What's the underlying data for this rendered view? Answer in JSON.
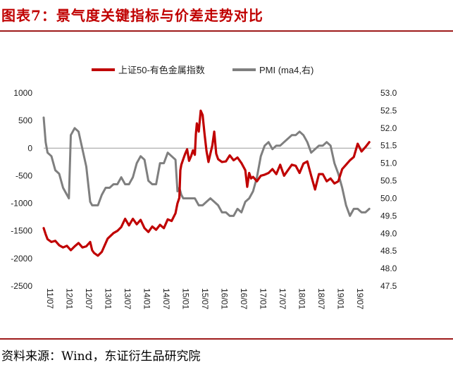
{
  "figure": {
    "title": "图表7：景气度关键指标与价差走势对比",
    "source": "资料来源：Wind，东证衍生品研究院"
  },
  "colors": {
    "series1": "#c00000",
    "series2": "#7f7f7f",
    "rule": "#9e1b1b"
  },
  "chart_data": {
    "type": "line",
    "legend_position": "top-center",
    "grid": false,
    "title": "",
    "xlabel": "",
    "ylabel_left": "",
    "ylabel_right": "",
    "x_ticks": [
      "11/07",
      "12/01",
      "12/07",
      "13/01",
      "13/07",
      "14/01",
      "14/07",
      "15/01",
      "15/07",
      "16/01",
      "16/07",
      "17/01",
      "17/07",
      "18/01",
      "18/07",
      "19/01",
      "19/07"
    ],
    "x_range": [
      0,
      16.9
    ],
    "y_left": {
      "range": [
        -2500,
        1000
      ],
      "ticks": [
        1000,
        500,
        0,
        -500,
        -1000,
        -1500,
        -2000,
        -2500
      ]
    },
    "y_right": {
      "range": [
        47.5,
        53.0
      ],
      "ticks": [
        "53.0",
        "52.5",
        "52.0",
        "51.5",
        "51.0",
        "50.5",
        "50.0",
        "49.5",
        "49.0",
        "48.5",
        "48.0",
        "47.5"
      ]
    },
    "series": [
      {
        "name": "上证50-有色金属指数",
        "axis": "left",
        "x": [
          0,
          0.1,
          0.2,
          0.4,
          0.6,
          0.8,
          1.0,
          1.2,
          1.4,
          1.6,
          1.8,
          2.0,
          2.2,
          2.4,
          2.5,
          2.6,
          2.8,
          3.0,
          3.3,
          3.6,
          3.8,
          4.0,
          4.2,
          4.4,
          4.6,
          4.8,
          5.0,
          5.2,
          5.4,
          5.6,
          5.8,
          6.0,
          6.2,
          6.4,
          6.6,
          6.8,
          6.9,
          7.0,
          7.05,
          7.1,
          7.2,
          7.3,
          7.4,
          7.5,
          7.6,
          7.7,
          7.8,
          7.85,
          7.9,
          8.0,
          8.1,
          8.2,
          8.3,
          8.4,
          8.5,
          8.6,
          8.7,
          8.8,
          8.9,
          9.0,
          9.2,
          9.4,
          9.6,
          9.8,
          10.0,
          10.2,
          10.4,
          10.5,
          10.6,
          10.7,
          10.8,
          11.0,
          11.2,
          11.4,
          11.6,
          11.8,
          12.0,
          12.2,
          12.4,
          12.6,
          12.8,
          13.0,
          13.2,
          13.4,
          13.6,
          13.8,
          14.0,
          14.2,
          14.4,
          14.6,
          14.8,
          15.0,
          15.2,
          15.4,
          15.6,
          15.8,
          16.0,
          16.2,
          16.4,
          16.6,
          16.8
        ],
        "values": [
          -1450,
          -1560,
          -1650,
          -1700,
          -1680,
          -1760,
          -1800,
          -1770,
          -1850,
          -1780,
          -1720,
          -1800,
          -1780,
          -1700,
          -1850,
          -1900,
          -1950,
          -1880,
          -1640,
          -1540,
          -1500,
          -1430,
          -1280,
          -1400,
          -1280,
          -1380,
          -1300,
          -1450,
          -1520,
          -1420,
          -1480,
          -1390,
          -1450,
          -1290,
          -1320,
          -1180,
          -1000,
          -900,
          -400,
          -300,
          -200,
          -100,
          -20,
          -230,
          -150,
          -40,
          -120,
          250,
          450,
          300,
          680,
          600,
          250,
          -50,
          -250,
          -100,
          50,
          300,
          -100,
          -200,
          -250,
          -240,
          -130,
          -220,
          -170,
          -270,
          -400,
          -700,
          -450,
          -550,
          -520,
          -600,
          -500,
          -480,
          -450,
          -380,
          -470,
          -300,
          -500,
          -400,
          -300,
          -320,
          -450,
          -280,
          -240,
          -500,
          -750,
          -470,
          -470,
          -600,
          -550,
          -640,
          -600,
          -380,
          -300,
          -220,
          -160,
          80,
          -60,
          20,
          110
        ]
      },
      {
        "name": "PMI (ma4,右)",
        "axis": "right",
        "x": [
          0,
          0.1,
          0.2,
          0.4,
          0.6,
          0.8,
          1.0,
          1.2,
          1.3,
          1.4,
          1.6,
          1.8,
          2.0,
          2.2,
          2.4,
          2.5,
          2.6,
          2.8,
          3.0,
          3.2,
          3.4,
          3.6,
          3.8,
          4.0,
          4.2,
          4.4,
          4.6,
          4.8,
          5.0,
          5.2,
          5.4,
          5.6,
          5.8,
          6.0,
          6.2,
          6.4,
          6.6,
          6.8,
          6.9,
          7.0,
          7.1,
          7.2,
          7.4,
          7.6,
          7.8,
          8.0,
          8.2,
          8.4,
          8.6,
          8.8,
          9.0,
          9.2,
          9.4,
          9.6,
          9.8,
          10.0,
          10.2,
          10.4,
          10.6,
          10.8,
          11.0,
          11.2,
          11.4,
          11.6,
          11.8,
          12.0,
          12.2,
          12.4,
          12.6,
          12.8,
          13.0,
          13.2,
          13.4,
          13.6,
          13.8,
          14.0,
          14.2,
          14.4,
          14.6,
          14.8,
          15.0,
          15.2,
          15.4,
          15.6,
          15.8,
          16.0,
          16.2,
          16.4,
          16.6,
          16.8
        ],
        "values": [
          52.3,
          51.6,
          51.3,
          51.2,
          50.8,
          50.7,
          50.3,
          50.1,
          50.0,
          51.8,
          52.0,
          51.9,
          51.4,
          50.9,
          49.9,
          49.8,
          49.8,
          49.8,
          50.1,
          50.3,
          50.3,
          50.4,
          50.4,
          50.6,
          50.4,
          50.4,
          50.6,
          51.0,
          51.2,
          51.1,
          50.5,
          50.4,
          50.4,
          51.0,
          51.0,
          51.3,
          51.2,
          51.1,
          50.2,
          50.3,
          50.1,
          50.0,
          50.0,
          50.0,
          50.0,
          49.8,
          49.8,
          49.9,
          50.0,
          49.9,
          49.8,
          49.6,
          49.6,
          49.5,
          49.5,
          49.7,
          49.6,
          49.9,
          50.0,
          50.2,
          50.6,
          51.2,
          51.5,
          51.6,
          51.4,
          51.5,
          51.5,
          51.6,
          51.7,
          51.8,
          51.8,
          51.9,
          51.8,
          51.6,
          51.3,
          51.4,
          51.5,
          51.5,
          51.6,
          51.5,
          51.0,
          50.7,
          50.3,
          49.8,
          49.5,
          49.7,
          49.7,
          49.6,
          49.6,
          49.7
        ]
      }
    ]
  }
}
